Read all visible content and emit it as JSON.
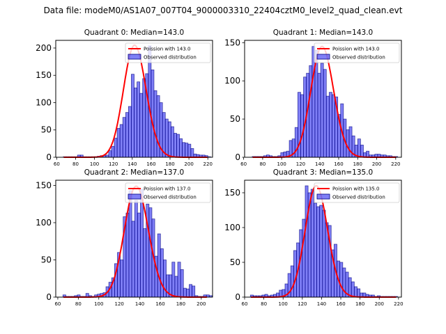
{
  "suptitle": "Data file: modeM0/AS1A07_007T04_9000003310_22404cztM0_level2_quad_clean.evt",
  "colors": {
    "bar_fill": "#0000ee",
    "bar_edge": "#000080",
    "poisson_line": "#ff0000",
    "frame": "#000000"
  },
  "chart_data": [
    {
      "type": "bar",
      "title": "Quadrant 0: Median=143.0",
      "legend": [
        "Poission with 143.0",
        "Observed distribution"
      ],
      "legend_position": "top-right",
      "xlim": [
        59,
        225
      ],
      "ylim": [
        0,
        214
      ],
      "xticks": [
        60,
        80,
        100,
        120,
        140,
        160,
        180,
        200,
        220
      ],
      "yticks": [
        0,
        50,
        100,
        150,
        200
      ],
      "bin_start": 67,
      "bin_width": 3,
      "values": [
        1,
        1,
        1,
        1,
        1,
        4,
        4,
        1,
        1,
        1,
        1,
        1,
        2,
        3,
        3,
        4,
        12,
        20,
        35,
        53,
        60,
        73,
        82,
        93,
        152,
        127,
        138,
        117,
        144,
        153,
        204,
        160,
        122,
        113,
        100,
        82,
        70,
        65,
        56,
        44,
        42,
        34,
        27,
        26,
        24,
        16,
        6,
        5,
        4,
        4,
        3,
        1,
        1,
        1,
        3
      ],
      "poisson_mean": 143.0,
      "poisson_scale": 205
    },
    {
      "type": "bar",
      "title": "Quadrant 1: Median=143.0",
      "legend": [
        "Poission with 143.0",
        "Observed distribution"
      ],
      "legend_position": "top-right",
      "xlim": [
        61,
        226
      ],
      "ylim": [
        0,
        153
      ],
      "xticks": [
        60,
        80,
        100,
        120,
        140,
        160,
        180,
        200,
        220
      ],
      "yticks": [
        0,
        50,
        100,
        150
      ],
      "bin_start": 69,
      "bin_width": 3,
      "values": [
        1,
        1,
        1,
        1,
        2,
        3,
        2,
        1,
        1,
        2,
        6,
        7,
        8,
        22,
        24,
        39,
        85,
        82,
        105,
        110,
        120,
        145,
        140,
        110,
        123,
        115,
        80,
        85,
        82,
        79,
        56,
        70,
        50,
        36,
        40,
        28,
        16,
        24,
        16,
        6,
        8,
        3,
        3,
        4,
        4,
        3,
        3,
        2,
        2,
        1,
        1
      ],
      "poisson_mean": 143.0,
      "poisson_scale": 145
    },
    {
      "type": "bar",
      "title": "Quadrant 2: Median=137.0",
      "legend": [
        "Poission with 137.0",
        "Observed distribution"
      ],
      "legend_position": "top-right",
      "xlim": [
        58,
        211
      ],
      "ylim": [
        0,
        157
      ],
      "xticks": [
        60,
        80,
        100,
        120,
        140,
        160,
        180,
        200
      ],
      "yticks": [
        0,
        50,
        100,
        150
      ],
      "bin_start": 65,
      "bin_width": 2.8,
      "values": [
        3,
        1,
        1,
        1,
        2,
        3,
        1,
        1,
        5,
        2,
        1,
        3,
        4,
        5,
        6,
        14,
        20,
        26,
        45,
        60,
        50,
        108,
        113,
        143,
        102,
        130,
        113,
        145,
        92,
        125,
        120,
        105,
        55,
        85,
        65,
        50,
        30,
        30,
        47,
        28,
        47,
        37,
        12,
        11,
        17,
        15,
        2,
        1,
        1,
        3,
        3,
        2
      ],
      "poisson_mean": 137.0,
      "poisson_scale": 149
    },
    {
      "type": "bar",
      "title": "Quadrant 3: Median=135.0",
      "legend": [
        "Poission with 135.0",
        "Observed distribution"
      ],
      "legend_position": "top-right",
      "xlim": [
        60,
        223
      ],
      "ylim": [
        0,
        168
      ],
      "xticks": [
        60,
        80,
        100,
        120,
        140,
        160,
        180,
        200,
        220
      ],
      "yticks": [
        0,
        50,
        100,
        150
      ],
      "bin_start": 66,
      "bin_width": 3,
      "values": [
        3,
        2,
        2,
        2,
        3,
        4,
        2,
        3,
        4,
        6,
        10,
        11,
        19,
        34,
        45,
        67,
        78,
        97,
        112,
        160,
        150,
        155,
        135,
        130,
        132,
        125,
        107,
        103,
        68,
        76,
        52,
        50,
        42,
        36,
        28,
        22,
        15,
        12,
        6,
        6,
        4,
        3,
        3,
        1,
        2,
        1,
        1,
        1,
        1,
        1,
        1
      ],
      "poisson_mean": 135.0,
      "poisson_scale": 160
    }
  ]
}
